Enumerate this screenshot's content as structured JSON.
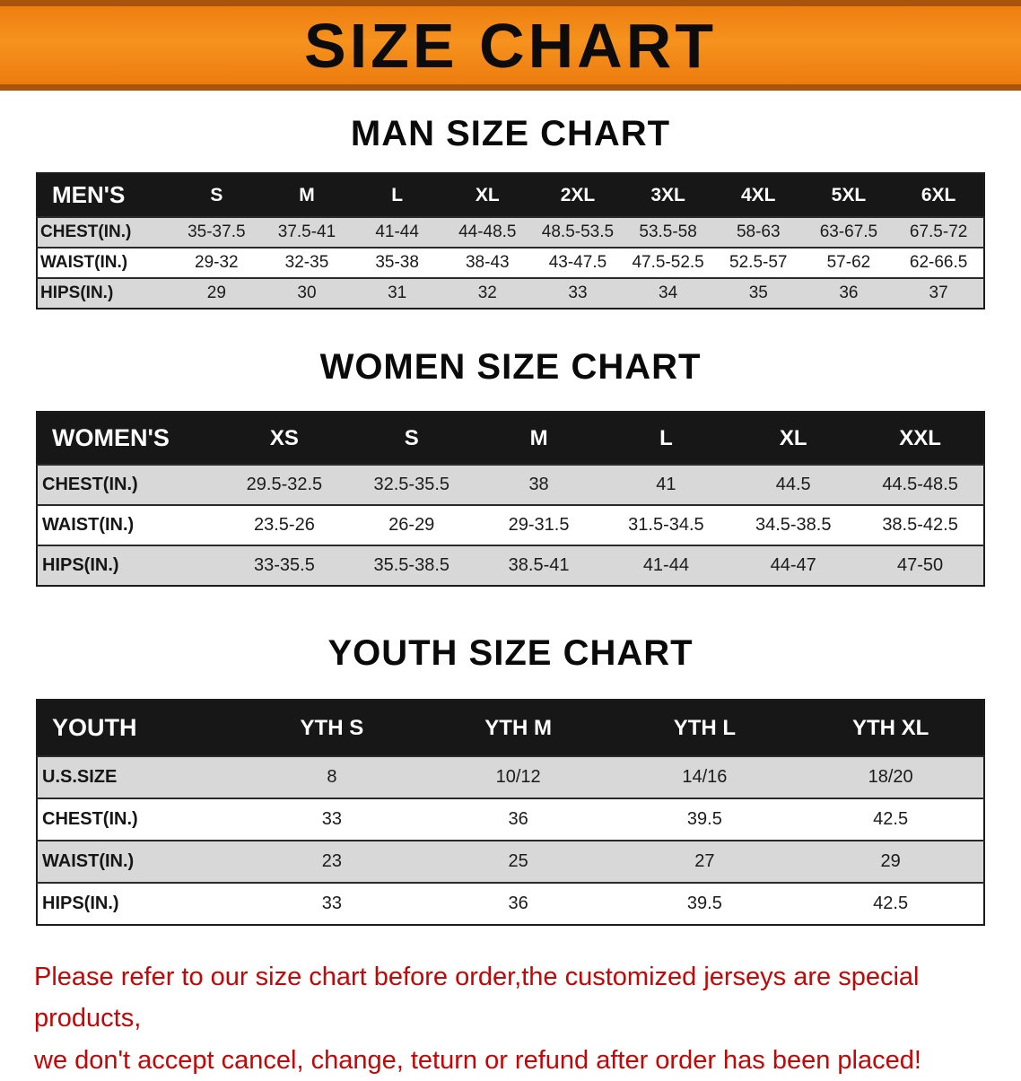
{
  "banner": {
    "title": "SIZE CHART"
  },
  "sections": {
    "men": {
      "heading": "MAN SIZE CHART",
      "table": {
        "header": [
          "MEN'S",
          "S",
          "M",
          "L",
          "XL",
          "2XL",
          "3XL",
          "4XL",
          "5XL",
          "6XL"
        ],
        "rows": [
          [
            "CHEST(IN.)",
            "35-37.5",
            "37.5-41",
            "41-44",
            "44-48.5",
            "48.5-53.5",
            "53.5-58",
            "58-63",
            "63-67.5",
            "67.5-72"
          ],
          [
            "WAIST(IN.)",
            "29-32",
            "32-35",
            "35-38",
            "38-43",
            "43-47.5",
            "47.5-52.5",
            "52.5-57",
            "57-62",
            "62-66.5"
          ],
          [
            "HIPS(IN.)",
            "29",
            "30",
            "31",
            "32",
            "33",
            "34",
            "35",
            "36",
            "37"
          ]
        ]
      }
    },
    "women": {
      "heading": "WOMEN SIZE CHART",
      "table": {
        "header": [
          "WOMEN'S",
          "XS",
          "S",
          "M",
          "L",
          "XL",
          "XXL"
        ],
        "rows": [
          [
            "CHEST(IN.)",
            "29.5-32.5",
            "32.5-35.5",
            "38",
            "41",
            "44.5",
            "44.5-48.5"
          ],
          [
            "WAIST(IN.)",
            "23.5-26",
            "26-29",
            "29-31.5",
            "31.5-34.5",
            "34.5-38.5",
            "38.5-42.5"
          ],
          [
            "HIPS(IN.)",
            "33-35.5",
            "35.5-38.5",
            "38.5-41",
            "41-44",
            "44-47",
            "47-50"
          ]
        ]
      }
    },
    "youth": {
      "heading": "YOUTH SIZE CHART",
      "table": {
        "header": [
          "YOUTH",
          "YTH S",
          "YTH M",
          "YTH L",
          "YTH XL"
        ],
        "rows": [
          [
            "U.S.SIZE",
            "8",
            "10/12",
            "14/16",
            "18/20"
          ],
          [
            "CHEST(IN.)",
            "33",
            "36",
            "39.5",
            "42.5"
          ],
          [
            "WAIST(IN.)",
            "23",
            "25",
            "27",
            "29"
          ],
          [
            "HIPS(IN.)",
            "33",
            "36",
            "39.5",
            "42.5"
          ]
        ]
      }
    }
  },
  "footer": {
    "line1": "Please refer to our size chart before order,the customized jerseys are special products,",
    "line2": "we don't accept cancel, change, teturn or refund after order has been placed!"
  },
  "colors": {
    "banner_orange": "#f6921e",
    "banner_edge": "#a8540c",
    "header_black": "#171717",
    "row_gray": "#d8d8d8",
    "notice_red": "#c40606"
  }
}
